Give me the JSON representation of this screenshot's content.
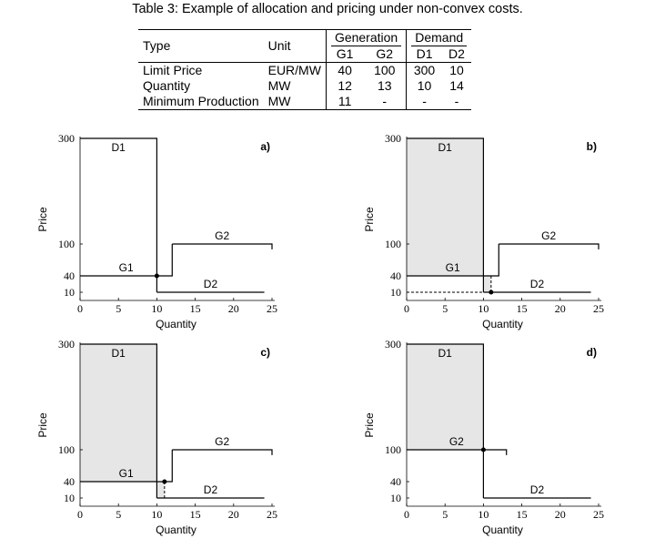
{
  "caption": "Table 3: Example of allocation and pricing under non-convex costs.",
  "table": {
    "h_type": "Type",
    "h_unit": "Unit",
    "h_generation": "Generation",
    "h_demand": "Demand",
    "h_g1": "G1",
    "h_g2": "G2",
    "h_d1": "D1",
    "h_d2": "D2",
    "rows": [
      {
        "type": "Limit Price",
        "unit": "EUR/MW",
        "g1": "40",
        "g2": "100",
        "d1": "300",
        "d2": "10"
      },
      {
        "type": "Quantity",
        "unit": "MW",
        "g1": "12",
        "g2": "13",
        "d1": "10",
        "d2": "14"
      },
      {
        "type": "Minimum Production",
        "unit": "MW",
        "g1": "11",
        "g2": "-",
        "d1": "-",
        "d2": "-"
      }
    ]
  },
  "chart_data": [
    {
      "type": "line",
      "panel": "a)",
      "xlabel": "Quantity",
      "ylabel": "Price",
      "xlim": [
        0,
        25
      ],
      "xticks": [
        0,
        5,
        10,
        15,
        20,
        25
      ],
      "yticks": [
        10,
        40,
        100,
        300
      ],
      "series": [
        {
          "name": "D1",
          "x": [
            0,
            10,
            10
          ],
          "y": [
            300,
            300,
            10
          ]
        },
        {
          "name": "D2",
          "x": [
            10,
            24
          ],
          "y": [
            10,
            10
          ]
        },
        {
          "name": "G1",
          "x": [
            0,
            12,
            12
          ],
          "y": [
            40,
            40,
            100
          ]
        },
        {
          "name": "G2",
          "x": [
            12,
            25,
            25
          ],
          "y": [
            100,
            100,
            90
          ]
        }
      ],
      "point": [
        10,
        40
      ],
      "shaded": []
    },
    {
      "type": "line",
      "panel": "b)",
      "xlabel": "Quantity",
      "ylabel": "Price",
      "xlim": [
        0,
        25
      ],
      "xticks": [
        0,
        5,
        10,
        15,
        20,
        25
      ],
      "yticks": [
        10,
        40,
        100,
        300
      ],
      "series": [
        {
          "name": "D1",
          "x": [
            0,
            10,
            10
          ],
          "y": [
            300,
            300,
            10
          ]
        },
        {
          "name": "D2",
          "x": [
            10,
            24
          ],
          "y": [
            10,
            10
          ]
        },
        {
          "name": "G1",
          "x": [
            0,
            12,
            12
          ],
          "y": [
            40,
            40,
            100
          ]
        },
        {
          "name": "G2",
          "x": [
            12,
            25,
            25
          ],
          "y": [
            100,
            100,
            90
          ]
        }
      ],
      "point": [
        11,
        10
      ],
      "dashed": [
        {
          "x": [
            0,
            11
          ],
          "y": [
            10,
            10
          ]
        },
        {
          "x": [
            11,
            11
          ],
          "y": [
            10,
            40
          ]
        }
      ],
      "shaded": [
        {
          "x": [
            0,
            10,
            10,
            0
          ],
          "y": [
            40,
            40,
            300,
            300
          ]
        },
        {
          "x": [
            10,
            11,
            11,
            10
          ],
          "y": [
            10,
            10,
            40,
            40
          ]
        }
      ]
    },
    {
      "type": "line",
      "panel": "c)",
      "xlabel": "Quantity",
      "ylabel": "Price",
      "xlim": [
        0,
        25
      ],
      "xticks": [
        0,
        5,
        10,
        15,
        20,
        25
      ],
      "yticks": [
        10,
        40,
        100,
        300
      ],
      "series": [
        {
          "name": "D1",
          "x": [
            0,
            10,
            10
          ],
          "y": [
            300,
            300,
            10
          ]
        },
        {
          "name": "D2",
          "x": [
            10,
            24
          ],
          "y": [
            10,
            10
          ]
        },
        {
          "name": "G1",
          "x": [
            0,
            12,
            12
          ],
          "y": [
            40,
            40,
            100
          ]
        },
        {
          "name": "G2",
          "x": [
            12,
            25,
            25
          ],
          "y": [
            100,
            100,
            90
          ]
        }
      ],
      "point": [
        11,
        40
      ],
      "dashed": [
        {
          "x": [
            11,
            11
          ],
          "y": [
            10,
            40
          ]
        }
      ],
      "shaded": [
        {
          "x": [
            0,
            10,
            10,
            0
          ],
          "y": [
            40,
            40,
            300,
            300
          ]
        },
        {
          "x": [
            10,
            11,
            11,
            10
          ],
          "y": [
            10,
            10,
            40,
            40
          ]
        }
      ]
    },
    {
      "type": "line",
      "panel": "d)",
      "xlabel": "Quantity",
      "ylabel": "Price",
      "xlim": [
        0,
        25
      ],
      "xticks": [
        0,
        5,
        10,
        15,
        20,
        25
      ],
      "yticks": [
        10,
        40,
        100,
        300
      ],
      "series": [
        {
          "name": "D1",
          "x": [
            0,
            10,
            10
          ],
          "y": [
            300,
            300,
            10
          ]
        },
        {
          "name": "D2",
          "x": [
            10,
            24
          ],
          "y": [
            10,
            10
          ]
        },
        {
          "name": "G2",
          "x": [
            0,
            13,
            13
          ],
          "y": [
            100,
            100,
            90
          ]
        }
      ],
      "point": [
        10,
        100
      ],
      "shaded": [
        {
          "x": [
            0,
            10,
            10,
            0
          ],
          "y": [
            100,
            100,
            300,
            300
          ]
        }
      ]
    }
  ]
}
